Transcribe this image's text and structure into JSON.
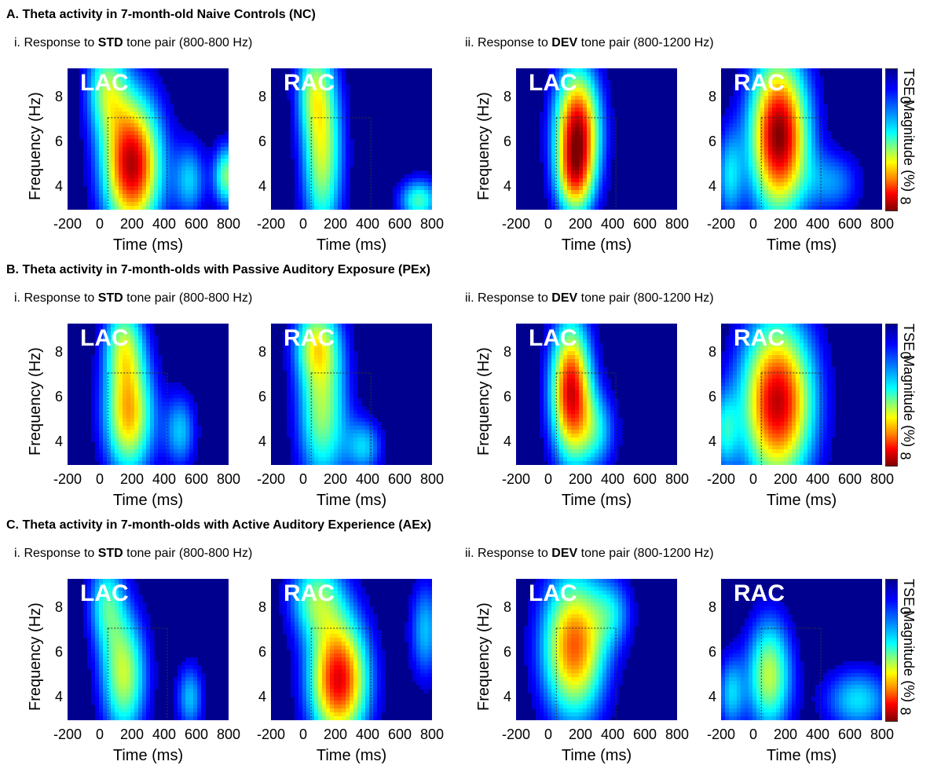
{
  "sections": [
    {
      "title": "A. Theta activity in 7-month-old Naive Controls (NC)",
      "std": {
        "prefix": "i. Response to ",
        "bold": "STD",
        "suffix": " tone pair (800-800 Hz)"
      },
      "dev": {
        "prefix": "ii. Response to ",
        "bold": "DEV",
        "suffix": " tone pair (800-1200 Hz)"
      }
    },
    {
      "title": "B. Theta activity in 7-month-olds with Passive Auditory Exposure (PEx)",
      "std": {
        "prefix": "i. Response to ",
        "bold": "STD",
        "suffix": " tone pair (800-800 Hz)"
      },
      "dev": {
        "prefix": "ii. Response to ",
        "bold": "DEV",
        "suffix": " tone pair (800-1200 Hz)"
      }
    },
    {
      "title": "C. Theta activity in 7-month-olds with Active Auditory Experience (AEx)",
      "std": {
        "prefix": "i. Response to ",
        "bold": "STD",
        "suffix": " tone pair (800-800 Hz)"
      },
      "dev": {
        "prefix": "ii. Response to ",
        "bold": "DEV",
        "suffix": " tone pair (800-1200 Hz)"
      }
    }
  ],
  "axes": {
    "ylabel": "Frequency (Hz)",
    "xlabel": "Time (ms)",
    "yticks": [
      "8",
      "6",
      "4"
    ],
    "xticks": [
      "-200",
      "0",
      "200",
      "400",
      "600",
      "800"
    ],
    "colorbar_label": "TSE Magnitude (%)",
    "colorbar_ticks": [
      "0",
      "8"
    ]
  },
  "chart_data": {
    "type": "heatmap",
    "x_unit": "ms",
    "y_unit": "Hz",
    "xlim": [
      -200,
      800
    ],
    "ylim": [
      3,
      9.3
    ],
    "color_range": [
      0,
      8
    ],
    "colormap": [
      "#00008f",
      "#0000ff",
      "#0080ff",
      "#00ffff",
      "#80ff80",
      "#ffff00",
      "#ff8000",
      "#ff0000",
      "#800000"
    ],
    "analysis_window": {
      "t": [
        50,
        420
      ],
      "f": [
        3,
        7.1
      ]
    },
    "panels": [
      {
        "group": "A",
        "condition": "STD",
        "region": "LAC",
        "blobs": [
          {
            "t": 200,
            "f": 5,
            "st": 130,
            "sf": 2.2,
            "a": 7.6
          },
          {
            "t": 40,
            "f": 8.5,
            "st": 90,
            "sf": 1.5,
            "a": 3.5
          },
          {
            "t": 560,
            "f": 4.3,
            "st": 70,
            "sf": 1.2,
            "a": 2.5
          },
          {
            "t": 790,
            "f": 4.5,
            "st": 60,
            "sf": 1,
            "a": 4
          }
        ]
      },
      {
        "group": "A",
        "condition": "STD",
        "region": "RAC",
        "blobs": [
          {
            "t": 120,
            "f": 5.5,
            "st": 90,
            "sf": 2.8,
            "a": 4.5
          },
          {
            "t": 60,
            "f": 8.5,
            "st": 80,
            "sf": 1.5,
            "a": 2.5
          },
          {
            "t": 720,
            "f": 3.4,
            "st": 90,
            "sf": 0.7,
            "a": 3.5
          }
        ]
      },
      {
        "group": "A",
        "condition": "DEV",
        "region": "LAC",
        "blobs": [
          {
            "t": 180,
            "f": 6.5,
            "st": 100,
            "sf": 2,
            "a": 7.5
          },
          {
            "t": 160,
            "f": 4.2,
            "st": 80,
            "sf": 1.2,
            "a": 3
          }
        ]
      },
      {
        "group": "A",
        "condition": "DEV",
        "region": "RAC",
        "blobs": [
          {
            "t": 160,
            "f": 6.3,
            "st": 130,
            "sf": 2.5,
            "a": 8
          },
          {
            "t": -150,
            "f": 4.5,
            "st": 60,
            "sf": 1.5,
            "a": 2.5
          },
          {
            "t": 500,
            "f": 4.2,
            "st": 120,
            "sf": 1,
            "a": 2
          }
        ]
      },
      {
        "group": "B",
        "condition": "STD",
        "region": "LAC",
        "blobs": [
          {
            "t": 180,
            "f": 5.2,
            "st": 110,
            "sf": 1.9,
            "a": 5.5
          },
          {
            "t": 150,
            "f": 8.5,
            "st": 90,
            "sf": 1.4,
            "a": 3.5
          },
          {
            "t": 500,
            "f": 4.5,
            "st": 70,
            "sf": 1.2,
            "a": 2.5
          }
        ]
      },
      {
        "group": "B",
        "condition": "STD",
        "region": "RAC",
        "blobs": [
          {
            "t": 120,
            "f": 5.5,
            "st": 110,
            "sf": 2.5,
            "a": 4.2
          },
          {
            "t": 80,
            "f": 8.5,
            "st": 100,
            "sf": 1.2,
            "a": 3.2
          },
          {
            "t": 380,
            "f": 3.8,
            "st": 80,
            "sf": 0.9,
            "a": 2.5
          }
        ]
      },
      {
        "group": "B",
        "condition": "DEV",
        "region": "LAC",
        "blobs": [
          {
            "t": 140,
            "f": 6.3,
            "st": 90,
            "sf": 2.2,
            "a": 7.2
          },
          {
            "t": 300,
            "f": 4.5,
            "st": 90,
            "sf": 1.3,
            "a": 2.5
          }
        ]
      },
      {
        "group": "B",
        "condition": "DEV",
        "region": "RAC",
        "blobs": [
          {
            "t": 150,
            "f": 5.8,
            "st": 160,
            "sf": 2.6,
            "a": 7.5
          },
          {
            "t": -180,
            "f": 4.5,
            "st": 60,
            "sf": 1.3,
            "a": 2.5
          }
        ]
      },
      {
        "group": "C",
        "condition": "STD",
        "region": "LAC",
        "blobs": [
          {
            "t": 150,
            "f": 5,
            "st": 100,
            "sf": 2,
            "a": 4.5
          },
          {
            "t": 40,
            "f": 8.3,
            "st": 80,
            "sf": 1.5,
            "a": 3
          },
          {
            "t": 560,
            "f": 4,
            "st": 60,
            "sf": 1.1,
            "a": 2.5
          }
        ]
      },
      {
        "group": "C",
        "condition": "STD",
        "region": "RAC",
        "blobs": [
          {
            "t": 220,
            "f": 4.8,
            "st": 130,
            "sf": 2,
            "a": 7.2
          },
          {
            "t": 80,
            "f": 8.5,
            "st": 120,
            "sf": 1.3,
            "a": 3.5
          },
          {
            "t": 760,
            "f": 7,
            "st": 70,
            "sf": 1.6,
            "a": 2.5
          }
        ]
      },
      {
        "group": "C",
        "condition": "DEV",
        "region": "LAC",
        "blobs": [
          {
            "t": 160,
            "f": 6.3,
            "st": 140,
            "sf": 2.3,
            "a": 6.3
          },
          {
            "t": 400,
            "f": 7.8,
            "st": 90,
            "sf": 1.1,
            "a": 2
          }
        ]
      },
      {
        "group": "C",
        "condition": "DEV",
        "region": "RAC",
        "blobs": [
          {
            "t": 100,
            "f": 5,
            "st": 100,
            "sf": 1.8,
            "a": 4.5
          },
          {
            "t": -140,
            "f": 4.2,
            "st": 60,
            "sf": 1.2,
            "a": 2.5
          },
          {
            "t": 650,
            "f": 3.9,
            "st": 150,
            "sf": 1,
            "a": 2.8
          }
        ]
      }
    ]
  }
}
